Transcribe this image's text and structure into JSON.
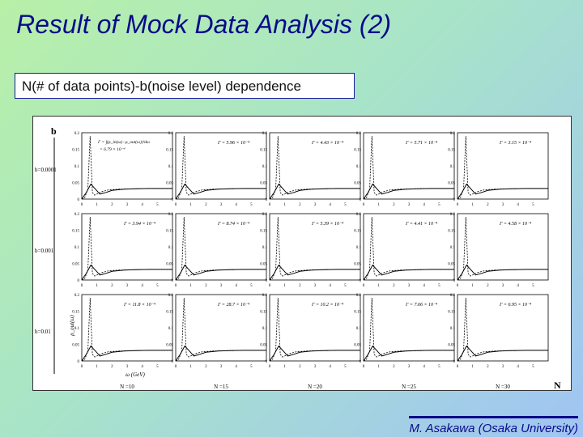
{
  "slide": {
    "title": "Result of Mock Data Analysis (2)",
    "subtitle": "N(# of data points)-b(noise level) dependence",
    "credit": "M. Asakawa (Osaka University)"
  },
  "figure": {
    "b_axis_label": "b",
    "n_axis_label": "N",
    "rows": [
      {
        "b_label": "b=0.0001",
        "gammas": [
          "= 5.96 × 10⁻⁴",
          "= 4.43 × 10⁻⁴",
          "= 5.71 × 10⁻⁴",
          "= 3.15 × 10⁻⁴"
        ]
      },
      {
        "b_label": "b=0.001",
        "gammas": [
          "= 3.94 × 10⁻⁴",
          "= 8.74 × 10⁻⁴",
          "= 5.39 × 10⁻⁴",
          "= 4.41 × 10⁻⁴",
          "= 4.58 × 10⁻⁴"
        ]
      },
      {
        "b_label": "b=0.01",
        "gammas": [
          "= 11.8 × 10⁻⁴",
          "= 28.7 × 10⁻⁴",
          "= 10.2 × 10⁻⁴",
          "= 7.66 × 10⁻⁴",
          "= 6.95 × 10⁻⁴"
        ]
      }
    ],
    "formula_line1": "= ∫(ρ_in(ω)−ρ_out(ω))²dω",
    "formula_line2": "= 6.79 × 10⁻⁴",
    "columns": [
      "N =10",
      "N =15",
      "N =20",
      "N =25",
      "N =30"
    ],
    "x_axis_label": "ω (GeV)",
    "y_axis_label": "ρ_out(ω)",
    "x_ticks": [
      "0",
      "1",
      "2",
      "3",
      "4",
      "5"
    ],
    "y_ticks": [
      "0",
      "0.05",
      "0.1",
      "0.15",
      "0.2"
    ]
  },
  "chart_data": {
    "type": "line",
    "xlim": [
      0,
      6
    ],
    "ylim": [
      0,
      0.2
    ],
    "xlabel": "ω (GeV)",
    "ylabel": "ρ_out(ω)",
    "series": [
      {
        "x": [
          0,
          0.2,
          0.4,
          0.55,
          0.7,
          0.85,
          1.0,
          1.3,
          1.8,
          2.5,
          3.5,
          4.5,
          6
        ],
        "values": [
          0,
          0.005,
          0.03,
          0.19,
          0.02,
          0.012,
          0.015,
          0.022,
          0.028,
          0.03,
          0.031,
          0.032,
          0.032
        ]
      },
      {
        "x": [
          0,
          0.3,
          0.6,
          0.9,
          1.2,
          1.6,
          2.0,
          2.8,
          3.5,
          4.5,
          6
        ],
        "values": [
          0,
          0.02,
          0.045,
          0.03,
          0.015,
          0.02,
          0.026,
          0.03,
          0.031,
          0.032,
          0.032
        ]
      }
    ]
  }
}
